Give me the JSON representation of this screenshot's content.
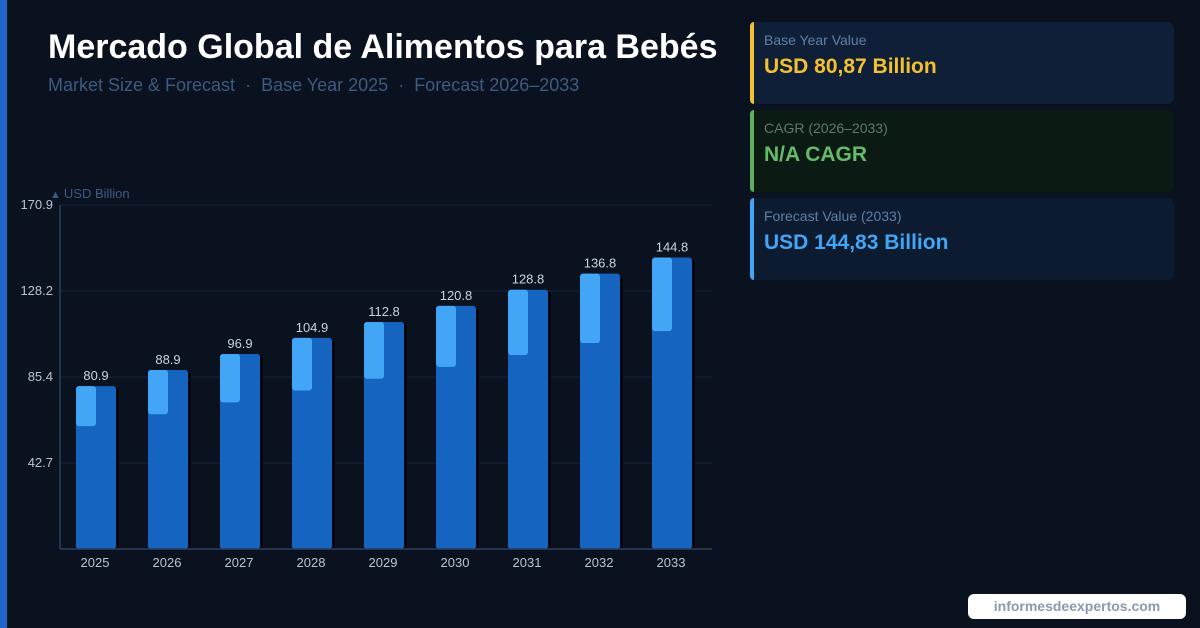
{
  "header": {
    "title": "Mercado Global de Alimentos para Bebés",
    "subtitle_parts": [
      "Market Size & Forecast",
      "Base Year 2025",
      "Forecast 2026–2033"
    ],
    "separator": "·"
  },
  "cards": {
    "base": {
      "label": "Base Year Value",
      "value": "USD 80,87 Billion"
    },
    "cagr": {
      "label": "CAGR (2026–2033)",
      "value": "N/A CAGR"
    },
    "forecast": {
      "label": "Forecast Value (2033)",
      "value": "USD 144,83 Billion"
    }
  },
  "brand": "informesdeexpertos.com",
  "colors": {
    "background": "#0a1220",
    "accent_blue": "#1e66c8",
    "bar_main": "#1565c0",
    "bar_highlight": "#42a5f5",
    "base_value": "#f5c030",
    "cagr_value": "#66bb6a",
    "forecast_value": "#42a5f5"
  },
  "chart_data": {
    "type": "bar",
    "unit_label": "USD Billion",
    "categories": [
      "2025",
      "2026",
      "2027",
      "2028",
      "2029",
      "2030",
      "2031",
      "2032",
      "2033"
    ],
    "values": [
      80.9,
      88.9,
      96.9,
      104.9,
      112.8,
      120.8,
      128.8,
      136.8,
      144.8
    ],
    "y_ticks": [
      "42.7",
      "85.4",
      "128.2",
      "170.9"
    ],
    "ylim": [
      0,
      170.9
    ],
    "grid": true,
    "legend": "none"
  }
}
